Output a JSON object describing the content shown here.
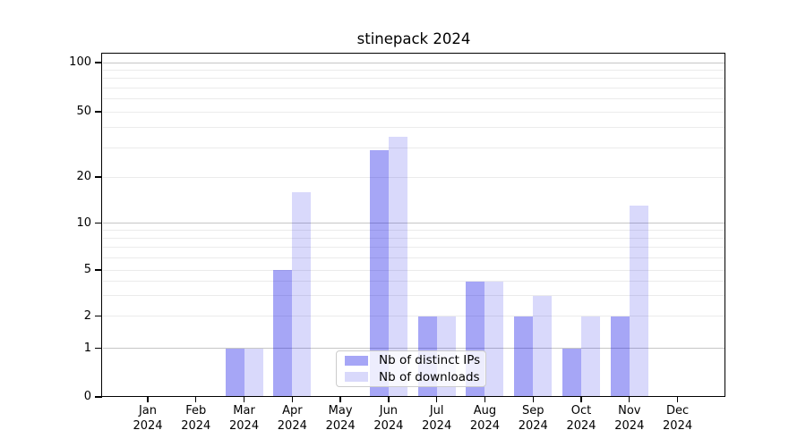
{
  "title": "stinepack 2024",
  "legend": {
    "items": [
      {
        "label": "Nb of distinct IPs"
      },
      {
        "label": "Nb of downloads"
      }
    ]
  },
  "chart_data": {
    "type": "bar",
    "title": "stinepack 2024",
    "categories": [
      "Jan",
      "Feb",
      "Mar",
      "Apr",
      "May",
      "Jun",
      "Jul",
      "Aug",
      "Sep",
      "Oct",
      "Nov",
      "Dec"
    ],
    "x_tick_year_line": "2024",
    "series": [
      {
        "name": "Nb of distinct IPs",
        "color": "rgba(0, 0, 230, 0.35)",
        "values": [
          0,
          0,
          1,
          5,
          0,
          29,
          2,
          4,
          2,
          1,
          2,
          0
        ]
      },
      {
        "name": "Nb of downloads",
        "color": "rgba(0, 0, 230, 0.15)",
        "values": [
          0,
          0,
          1,
          16,
          0,
          35,
          2,
          4,
          3,
          2,
          13,
          0
        ]
      }
    ],
    "y_ticks": [
      0,
      1,
      2,
      5,
      10,
      20,
      50,
      100
    ],
    "y_scale": "log above 1, linear 0-1",
    "grid": "horizontal major at 1,10,100; minor at 2-9 and 20-90 steps",
    "legend_position": "lower center",
    "xlabel": "",
    "ylabel": ""
  },
  "colors": {
    "background": "#ffffff",
    "bar_distinct_ips_visible": "#a6a6f5",
    "bar_downloads_visible": "#d9d9fb",
    "grid_major": "#c6c6c6",
    "grid_minor": "#ebebeb",
    "axis": "#000000",
    "legend_border": "#cccccc",
    "text": "#000000"
  }
}
